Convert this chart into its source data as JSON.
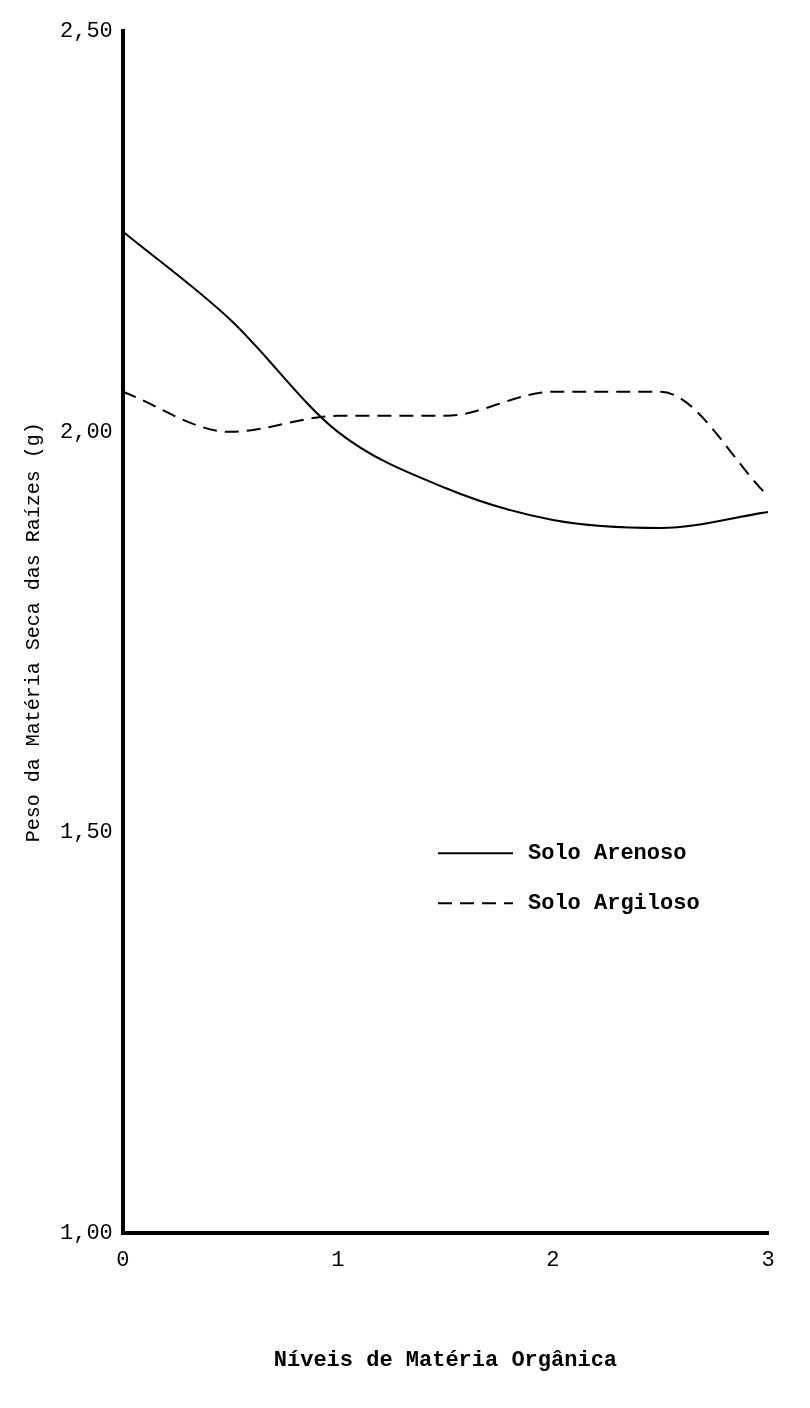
{
  "chart_data": {
    "type": "line",
    "xlabel": "Níveis de Matéria Orgânica",
    "ylabel": "Peso da Matéria Seca das Raízes (g)",
    "x": [
      0,
      0.5,
      1,
      1.5,
      2,
      2.5,
      3
    ],
    "series": [
      {
        "name": "Solo Arenoso",
        "color": "#000000",
        "line_style": "solid",
        "values": [
          2.25,
          2.14,
          2.0,
          1.93,
          1.89,
          1.88,
          1.9
        ]
      },
      {
        "name": "Solo Argiloso",
        "color": "#000000",
        "line_style": "dashed",
        "values": [
          2.05,
          2.0,
          2.02,
          2.02,
          2.05,
          2.05,
          1.92
        ]
      }
    ],
    "xlim": [
      0,
      3
    ],
    "xticks": [
      0,
      1,
      2,
      3
    ],
    "ylim": [
      1,
      2.5
    ],
    "yticks": [
      {
        "value": 1,
        "label": "1,00"
      },
      {
        "value": 1.5,
        "label": "1,50"
      },
      {
        "value": 2,
        "label": "2,00"
      },
      {
        "value": 2.5,
        "label": "2,50"
      }
    ],
    "grid": false,
    "legend": "bottom right",
    "marker": "none"
  }
}
